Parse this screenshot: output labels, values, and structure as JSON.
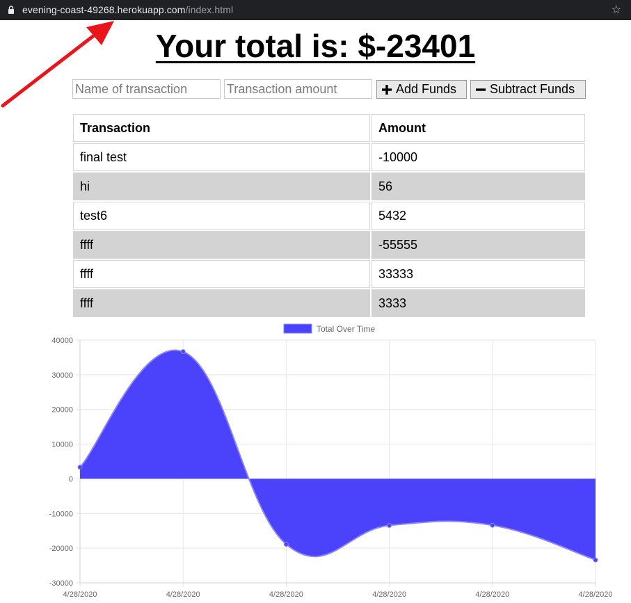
{
  "browser": {
    "url_host": "evening-coast-49268.herokuapp.com",
    "url_path": "/index.html"
  },
  "page": {
    "title_prefix": "Your total is: $",
    "total": "-23401"
  },
  "form": {
    "name_placeholder": "Name of transaction",
    "amount_placeholder": "Transaction amount",
    "add_label": "Add Funds",
    "subtract_label": "Subtract Funds"
  },
  "table": {
    "headers": [
      "Transaction",
      "Amount"
    ],
    "rows": [
      {
        "name": "final test",
        "amount": "-10000"
      },
      {
        "name": "hi",
        "amount": "56"
      },
      {
        "name": "test6",
        "amount": "5432"
      },
      {
        "name": "ffff",
        "amount": "-55555"
      },
      {
        "name": "ffff",
        "amount": "33333"
      },
      {
        "name": "ffff",
        "amount": "3333"
      }
    ]
  },
  "chart_data": {
    "type": "area",
    "legend": "Total Over Time",
    "legend_position": "top-center",
    "categories": [
      "4/28/2020",
      "4/28/2020",
      "4/28/2020",
      "4/28/2020",
      "4/28/2020",
      "4/28/2020"
    ],
    "series": [
      {
        "name": "Total Over Time",
        "values": [
          3333,
          36666,
          -18889,
          -13457,
          -13401,
          -23401
        ]
      }
    ],
    "ylim": [
      -30000,
      40000
    ],
    "yticks": [
      40000,
      30000,
      20000,
      10000,
      0,
      -10000,
      -20000,
      -30000
    ],
    "grid": true,
    "fill_color": "#4a43fb",
    "line_color": "#8a86f7"
  }
}
